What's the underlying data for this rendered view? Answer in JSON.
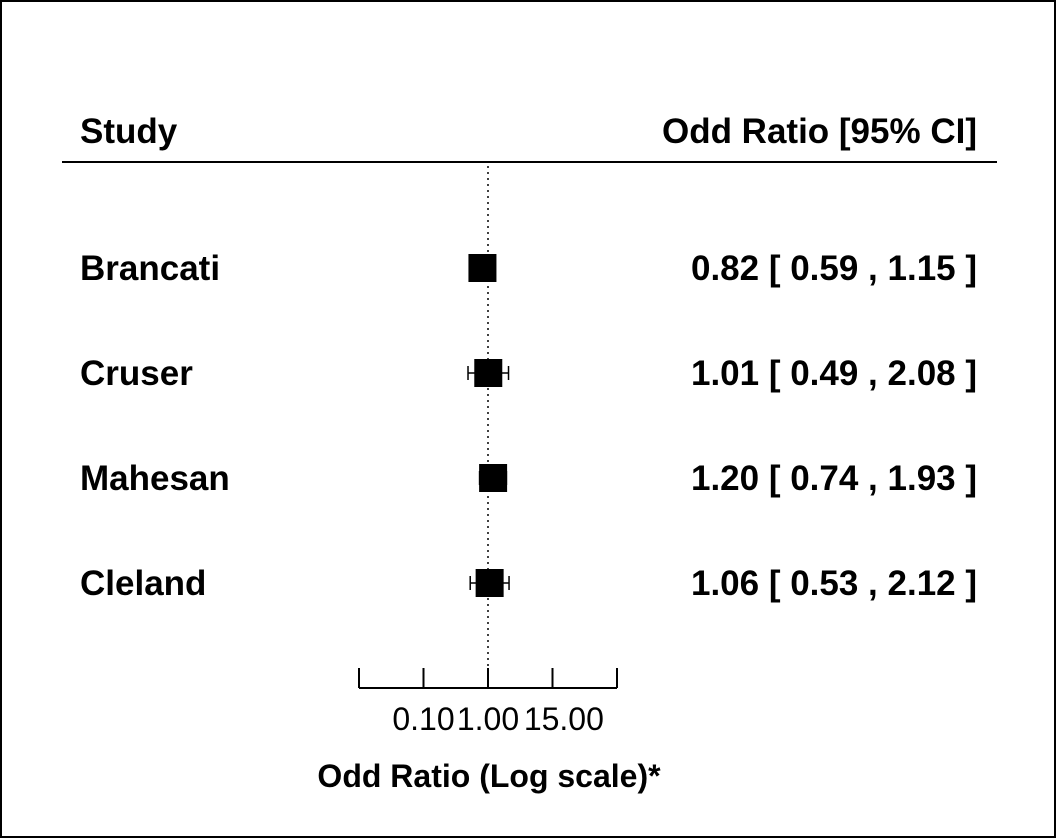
{
  "chart_data": {
    "type": "forest",
    "header": {
      "study": "Study",
      "effect": "Odd Ratio [95% CI]"
    },
    "studies": [
      {
        "name": "Brancati",
        "or": 0.82,
        "lo": 0.59,
        "hi": 1.15,
        "label": "0.82 [ 0.59 , 1.15 ]"
      },
      {
        "name": "Cruser",
        "or": 1.01,
        "lo": 0.49,
        "hi": 2.08,
        "label": "1.01 [ 0.49 , 2.08 ]"
      },
      {
        "name": "Mahesan",
        "or": 1.2,
        "lo": 0.74,
        "hi": 1.93,
        "label": "1.20 [ 0.74 , 1.93 ]"
      },
      {
        "name": "Cleland",
        "or": 1.06,
        "lo": 0.53,
        "hi": 2.12,
        "label": "1.06 [ 0.53 , 2.12 ]"
      }
    ],
    "xaxis": {
      "scale": "log",
      "ticks": [
        0.01,
        0.1,
        1,
        10,
        100
      ],
      "tick_labels": [
        {
          "value": 0.1,
          "text": "0.10"
        },
        {
          "value": 1,
          "text": "1.00"
        },
        {
          "value": 15,
          "text": "15.00"
        }
      ],
      "title": "Odd Ratio (Log scale)*",
      "reference_line": 1
    }
  }
}
